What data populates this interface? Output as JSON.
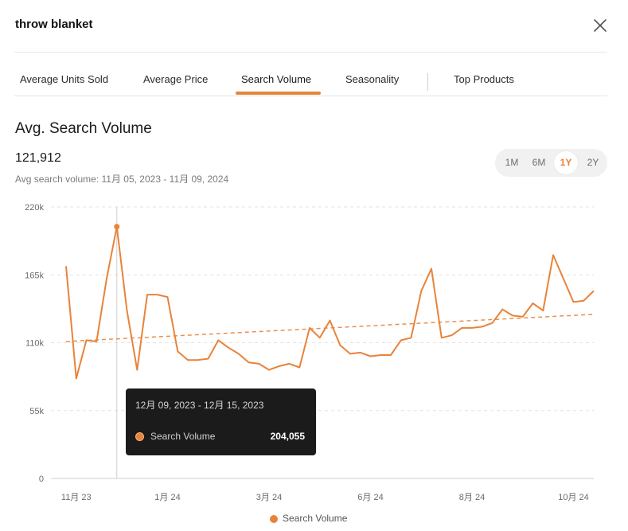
{
  "header": {
    "title": "throw blanket"
  },
  "tabs": [
    {
      "label": "Average Units Sold"
    },
    {
      "label": "Average Price"
    },
    {
      "label": "Search Volume"
    },
    {
      "label": "Seasonality"
    },
    {
      "label": "Top Products"
    }
  ],
  "active_tab": "Search Volume",
  "section": {
    "title": "Avg. Search Volume",
    "value": "121,912",
    "range_label": "Avg search volume: 11月 05, 2023 - 11月 09, 2024"
  },
  "periods": [
    {
      "label": "1M"
    },
    {
      "label": "6M"
    },
    {
      "label": "1Y"
    },
    {
      "label": "2Y"
    }
  ],
  "active_period": "1Y",
  "tooltip": {
    "date_range": "12月 09, 2023 - 12月 15, 2023",
    "series": "Search Volume",
    "value": "204,055"
  },
  "legend": {
    "label": "Search Volume"
  },
  "colors": {
    "accent": "#e8833a",
    "grid": "#e2e2e2",
    "tooltip_bg": "#1b1b1b"
  },
  "chart_data": {
    "type": "line",
    "y_ticks": [
      "0",
      "55k",
      "110k",
      "165k",
      "220k"
    ],
    "ylim": [
      0,
      220000
    ],
    "x_tick_labels": [
      "11月 23",
      "1月 24",
      "3月 24",
      "6月 24",
      "8月 24",
      "10月 24"
    ],
    "x_tick_indices": [
      1,
      10,
      20,
      30,
      40,
      50
    ],
    "grid": true,
    "legend_position": "bottom",
    "highlight_index": 6,
    "series": [
      {
        "name": "Search Volume",
        "values": [
          172000,
          81000,
          112000,
          111000,
          162000,
          204055,
          136000,
          88000,
          149000,
          149000,
          147000,
          103000,
          96000,
          96000,
          97000,
          112000,
          106000,
          101000,
          94000,
          93000,
          88000,
          91000,
          93000,
          90000,
          122000,
          114000,
          128000,
          108000,
          101000,
          102000,
          99000,
          100000,
          100000,
          112000,
          114000,
          152000,
          170000,
          114000,
          116000,
          122000,
          122000,
          123000,
          126000,
          137000,
          132000,
          131000,
          142000,
          136000,
          181000,
          162000,
          143000,
          144000,
          152000
        ]
      }
    ],
    "trend": {
      "name": "Trend",
      "start": 111000,
      "end": 133000
    }
  }
}
